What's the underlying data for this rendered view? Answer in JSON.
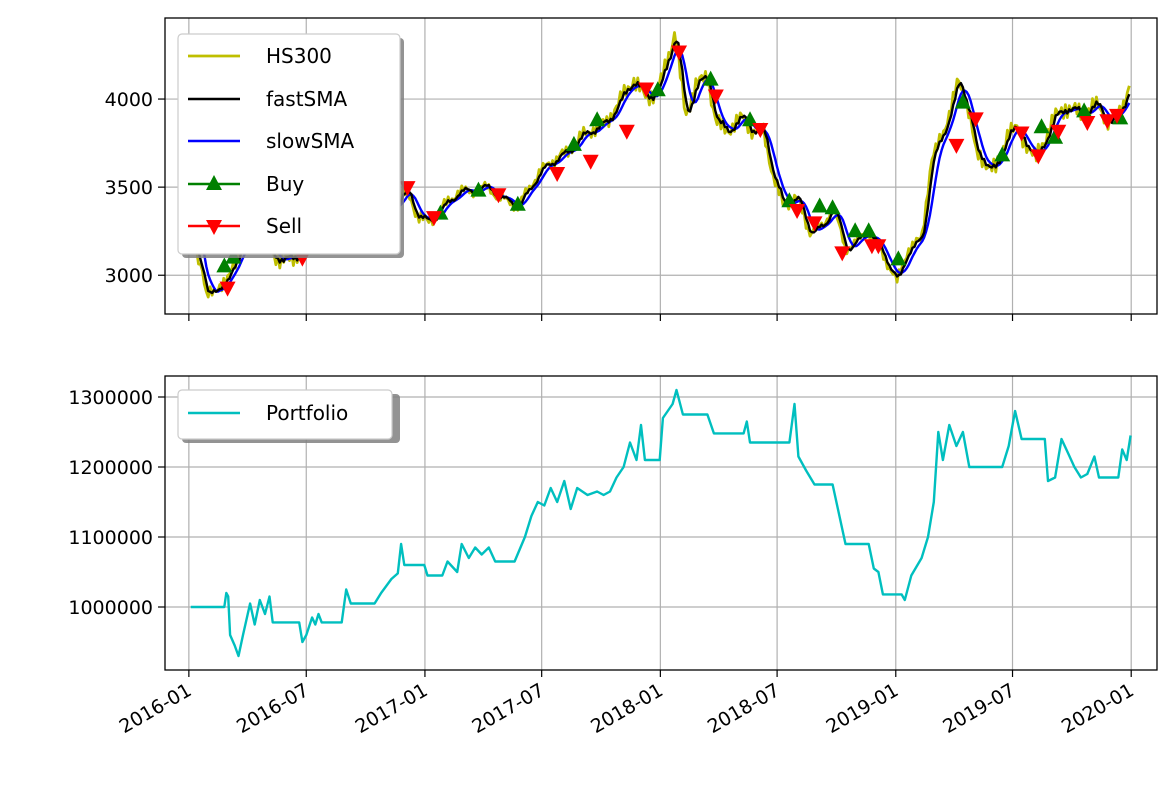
{
  "chart_data": [
    {
      "type": "line",
      "x_axis": {
        "type": "date",
        "xlim": [
          "2015-11-25",
          "2020-02-10"
        ],
        "ticks": [
          "2016-01",
          "2016-07",
          "2017-01",
          "2017-07",
          "2018-01",
          "2018-07",
          "2019-01",
          "2019-07",
          "2020-01"
        ],
        "tick_labels_visible": false
      },
      "ylim": [
        2780,
        4460
      ],
      "yticks": [
        3000,
        3500,
        4000
      ],
      "grid": true,
      "legend": {
        "placement": "top-left",
        "entries": [
          "HS300",
          "fastSMA",
          "slowSMA",
          "Buy",
          "Sell"
        ]
      },
      "colors": {
        "HS300": "#bfbf00",
        "fastSMA": "#000000",
        "slowSMA": "#0000ff",
        "Buy": "#008000",
        "Sell": "#ff0000"
      },
      "price_path": [
        [
          "2016-01-04",
          3470
        ],
        [
          "2016-01-12",
          3150
        ],
        [
          "2016-01-22",
          3030
        ],
        [
          "2016-01-28",
          2870
        ],
        [
          "2016-02-15",
          2940
        ],
        [
          "2016-02-29",
          2950
        ],
        [
          "2016-03-10",
          3060
        ],
        [
          "2016-03-25",
          3180
        ],
        [
          "2016-04-15",
          3260
        ],
        [
          "2016-05-10",
          3120
        ],
        [
          "2016-05-25",
          3080
        ],
        [
          "2016-06-15",
          3110
        ],
        [
          "2016-07-05",
          3180
        ],
        [
          "2016-07-25",
          3220
        ],
        [
          "2016-08-20",
          3340
        ],
        [
          "2016-09-20",
          3250
        ],
        [
          "2016-10-20",
          3330
        ],
        [
          "2016-11-20",
          3420
        ],
        [
          "2016-12-05",
          3480
        ],
        [
          "2016-12-20",
          3340
        ],
        [
          "2017-01-05",
          3300
        ],
        [
          "2017-01-25",
          3370
        ],
        [
          "2017-02-20",
          3470
        ],
        [
          "2017-03-15",
          3480
        ],
        [
          "2017-04-10",
          3500
        ],
        [
          "2017-04-28",
          3430
        ],
        [
          "2017-05-15",
          3420
        ],
        [
          "2017-05-25",
          3380
        ],
        [
          "2017-06-15",
          3520
        ],
        [
          "2017-07-10",
          3630
        ],
        [
          "2017-08-10",
          3700
        ],
        [
          "2017-09-05",
          3800
        ],
        [
          "2017-10-10",
          3870
        ],
        [
          "2017-11-01",
          4000
        ],
        [
          "2017-11-20",
          4110
        ],
        [
          "2017-12-10",
          4010
        ],
        [
          "2017-12-28",
          4040
        ],
        [
          "2018-01-10",
          4200
        ],
        [
          "2018-01-24",
          4380
        ],
        [
          "2018-02-09",
          3900
        ],
        [
          "2018-02-25",
          4080
        ],
        [
          "2018-03-15",
          4130
        ],
        [
          "2018-03-28",
          3870
        ],
        [
          "2018-04-15",
          3820
        ],
        [
          "2018-05-10",
          3900
        ],
        [
          "2018-05-25",
          3810
        ],
        [
          "2018-06-10",
          3820
        ],
        [
          "2018-06-25",
          3560
        ],
        [
          "2018-07-10",
          3400
        ],
        [
          "2018-08-01",
          3440
        ],
        [
          "2018-08-20",
          3250
        ],
        [
          "2018-09-10",
          3270
        ],
        [
          "2018-09-25",
          3400
        ],
        [
          "2018-10-15",
          3150
        ],
        [
          "2018-11-05",
          3200
        ],
        [
          "2018-11-20",
          3250
        ],
        [
          "2018-12-10",
          3130
        ],
        [
          "2018-12-28",
          3010
        ],
        [
          "2019-01-03",
          2960
        ],
        [
          "2019-01-20",
          3150
        ],
        [
          "2019-02-10",
          3200
        ],
        [
          "2019-02-25",
          3650
        ],
        [
          "2019-03-15",
          3800
        ],
        [
          "2019-04-08",
          4100
        ],
        [
          "2019-04-25",
          3930
        ],
        [
          "2019-05-06",
          3680
        ],
        [
          "2019-05-20",
          3640
        ],
        [
          "2019-06-06",
          3600
        ],
        [
          "2019-06-25",
          3830
        ],
        [
          "2019-07-10",
          3820
        ],
        [
          "2019-08-06",
          3660
        ],
        [
          "2019-09-05",
          3900
        ],
        [
          "2019-09-20",
          3950
        ],
        [
          "2019-10-20",
          3920
        ],
        [
          "2019-11-10",
          3970
        ],
        [
          "2019-11-28",
          3860
        ],
        [
          "2019-12-16",
          3940
        ],
        [
          "2019-12-31",
          4090
        ]
      ],
      "buy_signals": [
        [
          "2016-02-25",
          3050
        ],
        [
          "2016-03-10",
          3100
        ],
        [
          "2016-07-10",
          3150
        ],
        [
          "2017-01-25",
          3350
        ],
        [
          "2017-03-25",
          3480
        ],
        [
          "2017-05-25",
          3400
        ],
        [
          "2017-08-20",
          3740
        ],
        [
          "2017-09-25",
          3880
        ],
        [
          "2017-12-28",
          4050
        ],
        [
          "2018-03-20",
          4110
        ],
        [
          "2018-05-20",
          3880
        ],
        [
          "2018-07-20",
          3420
        ],
        [
          "2018-09-05",
          3390
        ],
        [
          "2018-09-25",
          3380
        ],
        [
          "2018-10-30",
          3250
        ],
        [
          "2018-11-20",
          3250
        ],
        [
          "2019-01-05",
          3090
        ],
        [
          "2019-04-15",
          3980
        ],
        [
          "2019-06-15",
          3680
        ],
        [
          "2019-08-15",
          3840
        ],
        [
          "2019-09-05",
          3780
        ],
        [
          "2019-10-20",
          3930
        ],
        [
          "2019-12-15",
          3890
        ]
      ],
      "sell_signals": [
        [
          "2016-03-01",
          2930
        ],
        [
          "2016-06-25",
          3100
        ],
        [
          "2016-12-05",
          3500
        ],
        [
          "2017-01-15",
          3330
        ],
        [
          "2017-04-25",
          3460
        ],
        [
          "2017-07-25",
          3580
        ],
        [
          "2017-09-15",
          3650
        ],
        [
          "2017-11-10",
          3820
        ],
        [
          "2017-12-10",
          4060
        ],
        [
          "2018-01-30",
          4270
        ],
        [
          "2018-03-28",
          4020
        ],
        [
          "2018-06-05",
          3830
        ],
        [
          "2018-08-01",
          3370
        ],
        [
          "2018-08-28",
          3300
        ],
        [
          "2018-10-10",
          3130
        ],
        [
          "2018-11-25",
          3170
        ],
        [
          "2018-12-05",
          3170
        ],
        [
          "2019-04-05",
          3740
        ],
        [
          "2019-05-05",
          3890
        ],
        [
          "2019-07-15",
          3810
        ],
        [
          "2019-08-10",
          3680
        ],
        [
          "2019-09-10",
          3820
        ],
        [
          "2019-10-25",
          3870
        ],
        [
          "2019-11-25",
          3880
        ],
        [
          "2019-12-10",
          3910
        ]
      ]
    },
    {
      "type": "line",
      "x_axis": {
        "type": "date",
        "xlim": [
          "2015-11-25",
          "2020-02-10"
        ],
        "ticks": [
          "2016-01",
          "2016-07",
          "2017-01",
          "2017-07",
          "2018-01",
          "2018-07",
          "2019-01",
          "2019-07",
          "2020-01"
        ]
      },
      "ylim": [
        910000,
        1330000
      ],
      "yticks": [
        1000000,
        1100000,
        1200000,
        1300000
      ],
      "grid": true,
      "legend": {
        "placement": "top-left",
        "entries": [
          "Portfolio"
        ]
      },
      "colors": {
        "Portfolio": "#00bfbf"
      },
      "series": [
        {
          "name": "Portfolio",
          "points": [
            [
              "2016-01-04",
              1000000
            ],
            [
              "2016-02-25",
              1000000
            ],
            [
              "2016-02-28",
              1020000
            ],
            [
              "2016-03-02",
              1015000
            ],
            [
              "2016-03-05",
              960000
            ],
            [
              "2016-03-12",
              945000
            ],
            [
              "2016-03-18",
              930000
            ],
            [
              "2016-03-25",
              960000
            ],
            [
              "2016-04-05",
              1005000
            ],
            [
              "2016-04-12",
              975000
            ],
            [
              "2016-04-20",
              1010000
            ],
            [
              "2016-04-28",
              990000
            ],
            [
              "2016-05-05",
              1015000
            ],
            [
              "2016-05-10",
              978000
            ],
            [
              "2016-06-20",
              978000
            ],
            [
              "2016-06-25",
              950000
            ],
            [
              "2016-07-01",
              960000
            ],
            [
              "2016-07-10",
              985000
            ],
            [
              "2016-07-15",
              975000
            ],
            [
              "2016-07-20",
              990000
            ],
            [
              "2016-07-25",
              978000
            ],
            [
              "2016-08-25",
              978000
            ],
            [
              "2016-09-01",
              1025000
            ],
            [
              "2016-09-08",
              1005000
            ],
            [
              "2016-10-15",
              1005000
            ],
            [
              "2016-10-25",
              1020000
            ],
            [
              "2016-11-10",
              1040000
            ],
            [
              "2016-11-20",
              1048000
            ],
            [
              "2016-11-25",
              1090000
            ],
            [
              "2016-11-30",
              1060000
            ],
            [
              "2016-12-31",
              1060000
            ],
            [
              "2017-01-05",
              1045000
            ],
            [
              "2017-01-28",
              1045000
            ],
            [
              "2017-02-05",
              1065000
            ],
            [
              "2017-02-20",
              1050000
            ],
            [
              "2017-02-27",
              1090000
            ],
            [
              "2017-03-10",
              1070000
            ],
            [
              "2017-03-20",
              1085000
            ],
            [
              "2017-03-30",
              1075000
            ],
            [
              "2017-04-10",
              1085000
            ],
            [
              "2017-04-20",
              1065000
            ],
            [
              "2017-05-20",
              1065000
            ],
            [
              "2017-06-05",
              1100000
            ],
            [
              "2017-06-15",
              1130000
            ],
            [
              "2017-06-25",
              1150000
            ],
            [
              "2017-07-05",
              1145000
            ],
            [
              "2017-07-15",
              1170000
            ],
            [
              "2017-07-25",
              1150000
            ],
            [
              "2017-08-05",
              1180000
            ],
            [
              "2017-08-15",
              1140000
            ],
            [
              "2017-08-25",
              1170000
            ],
            [
              "2017-09-10",
              1160000
            ],
            [
              "2017-09-25",
              1165000
            ],
            [
              "2017-10-05",
              1160000
            ],
            [
              "2017-10-15",
              1165000
            ],
            [
              "2017-10-25",
              1185000
            ],
            [
              "2017-11-05",
              1200000
            ],
            [
              "2017-11-15",
              1235000
            ],
            [
              "2017-11-25",
              1210000
            ],
            [
              "2017-12-02",
              1260000
            ],
            [
              "2017-12-08",
              1210000
            ],
            [
              "2017-12-31",
              1210000
            ],
            [
              "2018-01-05",
              1270000
            ],
            [
              "2018-01-20",
              1290000
            ],
            [
              "2018-01-26",
              1310000
            ],
            [
              "2018-02-05",
              1275000
            ],
            [
              "2018-03-15",
              1275000
            ],
            [
              "2018-03-25",
              1248000
            ],
            [
              "2018-05-10",
              1248000
            ],
            [
              "2018-05-15",
              1265000
            ],
            [
              "2018-05-20",
              1235000
            ],
            [
              "2018-07-20",
              1235000
            ],
            [
              "2018-07-28",
              1290000
            ],
            [
              "2018-08-03",
              1215000
            ],
            [
              "2018-08-15",
              1195000
            ],
            [
              "2018-08-28",
              1175000
            ],
            [
              "2018-09-25",
              1175000
            ],
            [
              "2018-10-15",
              1090000
            ],
            [
              "2018-11-20",
              1090000
            ],
            [
              "2018-11-28",
              1055000
            ],
            [
              "2018-12-05",
              1050000
            ],
            [
              "2018-12-12",
              1018000
            ],
            [
              "2019-01-10",
              1018000
            ],
            [
              "2019-01-15",
              1010000
            ],
            [
              "2019-01-25",
              1045000
            ],
            [
              "2019-02-10",
              1070000
            ],
            [
              "2019-02-20",
              1100000
            ],
            [
              "2019-03-01",
              1150000
            ],
            [
              "2019-03-08",
              1250000
            ],
            [
              "2019-03-15",
              1210000
            ],
            [
              "2019-03-25",
              1260000
            ],
            [
              "2019-04-05",
              1230000
            ],
            [
              "2019-04-15",
              1250000
            ],
            [
              "2019-04-25",
              1200000
            ],
            [
              "2019-06-15",
              1200000
            ],
            [
              "2019-06-25",
              1230000
            ],
            [
              "2019-07-05",
              1280000
            ],
            [
              "2019-07-15",
              1240000
            ],
            [
              "2019-08-20",
              1240000
            ],
            [
              "2019-08-25",
              1180000
            ],
            [
              "2019-09-05",
              1185000
            ],
            [
              "2019-09-15",
              1240000
            ],
            [
              "2019-09-25",
              1220000
            ],
            [
              "2019-10-05",
              1200000
            ],
            [
              "2019-10-15",
              1185000
            ],
            [
              "2019-10-25",
              1190000
            ],
            [
              "2019-11-05",
              1215000
            ],
            [
              "2019-11-12",
              1185000
            ],
            [
              "2019-12-12",
              1185000
            ],
            [
              "2019-12-18",
              1225000
            ],
            [
              "2019-12-25",
              1210000
            ],
            [
              "2019-12-31",
              1245000
            ]
          ]
        }
      ]
    }
  ]
}
